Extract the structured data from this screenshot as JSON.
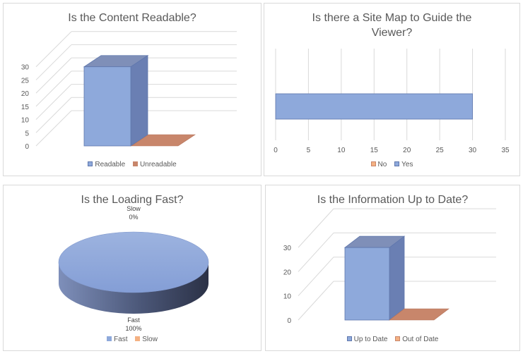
{
  "colors": {
    "blue": "#8ea9db",
    "blue_dark": "#5f77ad",
    "blue_side": "#6a7fb3",
    "blue_top": "#7f8fb8",
    "orange": "#c8866b",
    "grid": "#d9d9d9"
  },
  "chart_data": [
    {
      "type": "bar",
      "orientation": "vertical-3d",
      "title": "Is the Content Readable?",
      "categories": [
        "Readable",
        "Unreadable"
      ],
      "values": [
        30,
        0
      ],
      "ylim": [
        0,
        35
      ],
      "yticks": [
        "0",
        "5",
        "10",
        "15",
        "20",
        "25",
        "30"
      ],
      "legend": [
        "Readable",
        "Unreadable"
      ],
      "legend_position": "bottom",
      "grid": true
    },
    {
      "type": "bar",
      "orientation": "horizontal",
      "title": "Is there a Site Map to Guide the Viewer?",
      "categories": [
        "No",
        "Yes"
      ],
      "values": [
        0,
        30
      ],
      "xlim": [
        0,
        35
      ],
      "xticks": [
        "0",
        "5",
        "10",
        "15",
        "20",
        "25",
        "30",
        "35"
      ],
      "legend": [
        "No",
        "Yes"
      ],
      "legend_position": "bottom",
      "grid": true
    },
    {
      "type": "pie",
      "title": "Is the Loading Fast?",
      "categories": [
        "Fast",
        "Slow"
      ],
      "values": [
        100,
        0
      ],
      "data_labels": [
        {
          "name": "Fast",
          "pct": "100%"
        },
        {
          "name": "Slow",
          "pct": "0%"
        }
      ],
      "legend": [
        "Fast",
        "Slow"
      ],
      "legend_position": "bottom"
    },
    {
      "type": "bar",
      "orientation": "vertical-3d",
      "title": "Is the Information Up to Date?",
      "categories": [
        "Up to Date",
        "Out of Date"
      ],
      "values": [
        30,
        0
      ],
      "ylim": [
        0,
        35
      ],
      "yticks": [
        "0",
        "10",
        "20",
        "30"
      ],
      "legend": [
        "Up to Date",
        "Out of Date"
      ],
      "legend_position": "bottom",
      "grid": true
    }
  ]
}
